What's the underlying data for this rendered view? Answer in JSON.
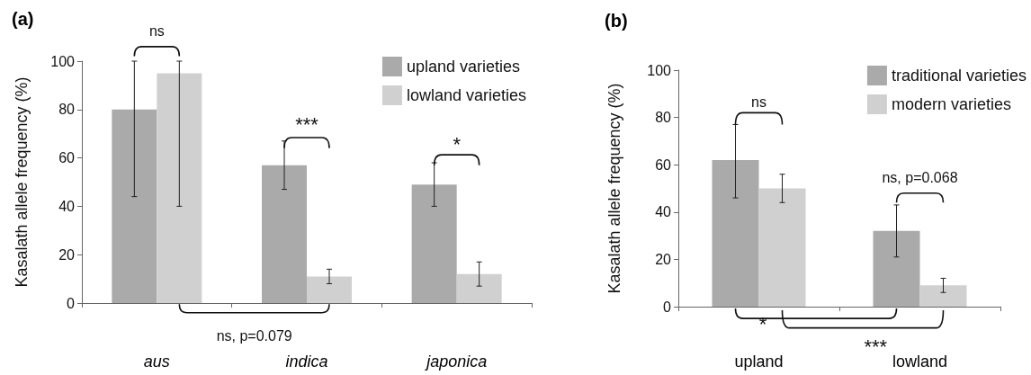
{
  "chart_data": [
    {
      "type": "bar",
      "title": "(a)",
      "ylabel": "Kasalath allele frequency (%)",
      "categories": [
        "aus",
        "indica",
        "japonica"
      ],
      "series": [
        {
          "name": "upland varieties",
          "color": "#a9aaa9",
          "values": [
            80,
            57,
            49
          ],
          "errors": [
            [
              44,
              100
            ],
            [
              47,
              67
            ],
            [
              40,
              58
            ]
          ]
        },
        {
          "name": "lowland varieties",
          "color": "#d0d0d0",
          "values": [
            95,
            11,
            12
          ],
          "errors": [
            [
              40,
              100
            ],
            [
              8,
              14
            ],
            [
              7,
              17
            ]
          ]
        }
      ],
      "ylim": [
        0,
        100
      ],
      "yticks": [
        0,
        20,
        40,
        60,
        80,
        100
      ],
      "legend": "top right",
      "annotations": [
        "ns",
        "***",
        "*",
        "ns, p=0.079"
      ]
    },
    {
      "type": "bar",
      "title": "(b)",
      "ylabel": "Kasalath allele frequency (%)",
      "categories": [
        "upland",
        "lowland"
      ],
      "series": [
        {
          "name": "traditional varieties",
          "color": "#a9aaa9",
          "values": [
            62,
            32
          ],
          "errors": [
            [
              46,
              77
            ],
            [
              21,
              43
            ]
          ]
        },
        {
          "name": "modern varieties",
          "color": "#d0d0d0",
          "values": [
            50,
            9
          ],
          "errors": [
            [
              44,
              56
            ],
            [
              6,
              12
            ]
          ]
        }
      ],
      "ylim": [
        0,
        100
      ],
      "yticks": [
        0,
        20,
        40,
        60,
        80,
        100
      ],
      "legend": "top right",
      "annotations": [
        "ns",
        "ns, p=0.068",
        "*",
        "***"
      ]
    }
  ]
}
